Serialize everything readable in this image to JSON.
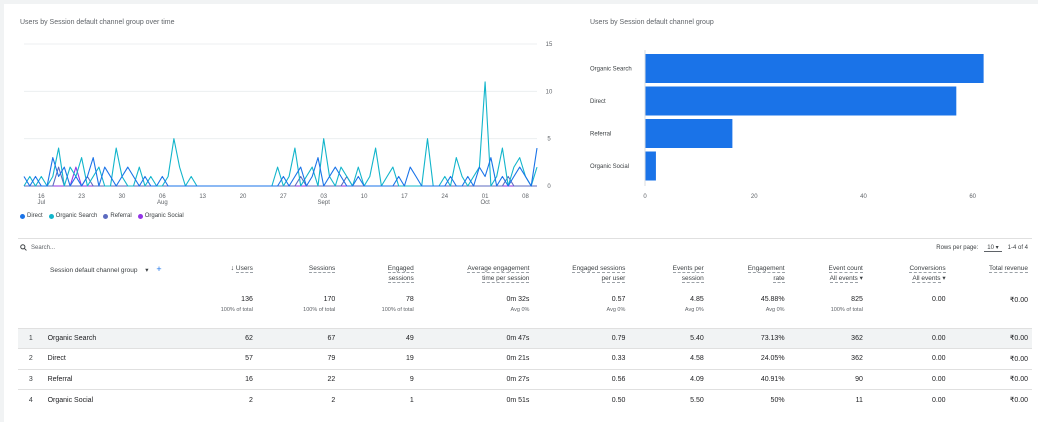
{
  "line_chart": {
    "title": "Users by Session default channel group over time",
    "y_ticks": [
      "15",
      "10",
      "5",
      "0"
    ],
    "x_ticks": [
      {
        "day": "16",
        "month": "Jul"
      },
      {
        "day": "23",
        "month": ""
      },
      {
        "day": "30",
        "month": ""
      },
      {
        "day": "06",
        "month": "Aug"
      },
      {
        "day": "13",
        "month": ""
      },
      {
        "day": "20",
        "month": ""
      },
      {
        "day": "27",
        "month": ""
      },
      {
        "day": "03",
        "month": "Sept"
      },
      {
        "day": "10",
        "month": ""
      },
      {
        "day": "17",
        "month": ""
      },
      {
        "day": "24",
        "month": ""
      },
      {
        "day": "01",
        "month": "Oct"
      },
      {
        "day": "08",
        "month": ""
      }
    ],
    "legend": [
      {
        "name": "Direct",
        "color": "#1a73e8"
      },
      {
        "name": "Organic Search",
        "color": "#12b5cb"
      },
      {
        "name": "Referral",
        "color": "#5c6bc0"
      },
      {
        "name": "Organic Social",
        "color": "#9334e6"
      }
    ]
  },
  "chart_data": [
    {
      "type": "line",
      "title": "Users by Session default channel group over time",
      "ylim": [
        0,
        15
      ],
      "x_start": "Jul 13",
      "series": [
        {
          "name": "Direct",
          "color": "#1a73e8",
          "values": [
            1,
            0,
            1,
            0,
            0,
            3,
            1,
            2,
            0,
            1,
            0,
            1,
            3,
            0,
            2,
            1,
            0,
            1,
            2,
            1,
            0,
            1,
            0,
            0,
            1,
            0,
            0,
            0,
            0,
            0,
            0,
            0,
            0,
            0,
            0,
            0,
            0,
            0,
            0,
            0,
            0,
            0,
            0,
            0,
            0,
            1,
            0,
            1,
            2,
            0,
            1,
            3,
            0,
            1,
            2,
            1,
            0,
            0,
            1,
            0,
            0,
            0,
            0,
            0,
            0,
            1,
            0,
            2,
            1,
            0,
            0,
            0,
            0,
            0,
            1,
            0,
            0,
            1,
            0,
            2,
            1,
            3,
            0,
            1,
            0,
            1,
            2,
            1,
            0,
            4
          ]
        },
        {
          "name": "Organic Search",
          "color": "#12b5cb",
          "values": [
            0,
            1,
            0,
            1,
            0,
            1,
            4,
            0,
            2,
            1,
            3,
            0,
            1,
            2,
            0,
            0,
            4,
            1,
            0,
            0,
            2,
            0,
            1,
            0,
            0,
            1,
            5,
            2,
            0,
            1,
            0,
            0,
            0,
            0,
            0,
            0,
            0,
            0,
            0,
            0,
            0,
            0,
            0,
            0,
            2,
            0,
            1,
            4,
            0,
            1,
            2,
            0,
            5,
            1,
            0,
            2,
            1,
            0,
            2,
            0,
            1,
            4,
            0,
            1,
            2,
            0,
            0,
            0,
            0,
            0,
            5,
            0,
            0,
            1,
            0,
            3,
            1,
            0,
            1,
            2,
            11,
            0,
            1,
            4,
            0,
            2,
            3,
            1,
            0,
            2
          ]
        },
        {
          "name": "Referral",
          "color": "#5c6bc0",
          "values": [
            0,
            0,
            0,
            0,
            0,
            0,
            2,
            0,
            0,
            0,
            0,
            1,
            0,
            0,
            0,
            0,
            0,
            0,
            0,
            0,
            0,
            0,
            0,
            0,
            0,
            0,
            0,
            0,
            0,
            0,
            0,
            0,
            0,
            0,
            0,
            0,
            0,
            0,
            0,
            0,
            0,
            0,
            0,
            0,
            0,
            0,
            0,
            0,
            1,
            0,
            0,
            0,
            0,
            0,
            0,
            0,
            1,
            0,
            0,
            0,
            0,
            0,
            0,
            0,
            0,
            0,
            0,
            0,
            0,
            0,
            0,
            0,
            0,
            0,
            0,
            0,
            0,
            0,
            0,
            0,
            0,
            0,
            0,
            0,
            1,
            0,
            0,
            0,
            0,
            0
          ]
        },
        {
          "name": "Organic Social",
          "color": "#9334e6",
          "values": [
            0,
            0,
            0,
            0,
            0,
            0,
            0,
            0,
            0,
            2,
            0,
            0,
            0,
            0,
            0,
            0,
            0,
            0,
            0,
            0,
            0,
            0,
            0,
            0,
            0,
            0,
            0,
            0,
            0,
            0,
            0,
            0,
            0,
            0,
            0,
            0,
            0,
            0,
            0,
            0,
            0,
            0,
            0,
            0,
            0,
            0,
            0,
            0,
            0,
            0,
            0,
            0,
            0,
            0,
            0,
            0,
            0,
            0,
            0,
            0,
            0,
            0,
            0,
            0,
            0,
            0,
            0,
            0,
            0,
            0,
            0,
            0,
            0,
            0,
            0,
            0,
            0,
            0,
            0,
            0,
            0,
            0,
            0,
            0,
            0,
            0,
            0,
            0,
            0,
            0
          ]
        }
      ]
    },
    {
      "type": "bar",
      "title": "Users by Session default channel group",
      "categories": [
        "Organic Search",
        "Direct",
        "Referral",
        "Organic Social"
      ],
      "values": [
        62,
        57,
        16,
        2
      ],
      "xlim": [
        0,
        65
      ],
      "x_ticks": [
        "0",
        "20",
        "40",
        "60"
      ],
      "color": "#1a73e8"
    }
  ],
  "bar_chart": {
    "title": "Users by Session default channel group"
  },
  "toolbar": {
    "search_placeholder": "Search...",
    "rows_per_page_label": "Rows per page:",
    "rows_per_page_value": "10",
    "page_range": "1-4 of 4"
  },
  "table": {
    "dimension_header": "Session default channel group",
    "columns": [
      {
        "line1": "Users",
        "line2": "",
        "sorted": true
      },
      {
        "line1": "Sessions",
        "line2": ""
      },
      {
        "line1": "Engaged",
        "line2": "sessions"
      },
      {
        "line1": "Average engagement",
        "line2": "time per session"
      },
      {
        "line1": "Engaged sessions",
        "line2": "per user"
      },
      {
        "line1": "Events per",
        "line2": "session"
      },
      {
        "line1": "Engagement",
        "line2": "rate"
      },
      {
        "line1": "Event count",
        "line2": "All events"
      },
      {
        "line1": "Conversions",
        "line2": "All events"
      },
      {
        "line1": "Total revenue",
        "line2": ""
      }
    ],
    "totals": [
      {
        "value": "136",
        "sub": "100% of total"
      },
      {
        "value": "170",
        "sub": "100% of total"
      },
      {
        "value": "78",
        "sub": "100% of total"
      },
      {
        "value": "0m 32s",
        "sub": "Avg 0%"
      },
      {
        "value": "0.57",
        "sub": "Avg 0%"
      },
      {
        "value": "4.85",
        "sub": "Avg 0%"
      },
      {
        "value": "45.88%",
        "sub": "Avg 0%"
      },
      {
        "value": "825",
        "sub": "100% of total"
      },
      {
        "value": "0.00",
        "sub": ""
      },
      {
        "value": "₹0.00",
        "sub": ""
      }
    ],
    "rows": [
      {
        "idx": "1",
        "name": "Organic Search",
        "cells": [
          "62",
          "67",
          "49",
          "0m 47s",
          "0.79",
          "5.40",
          "73.13%",
          "362",
          "0.00",
          "₹0.00"
        ]
      },
      {
        "idx": "2",
        "name": "Direct",
        "cells": [
          "57",
          "79",
          "19",
          "0m 21s",
          "0.33",
          "4.58",
          "24.05%",
          "362",
          "0.00",
          "₹0.00"
        ]
      },
      {
        "idx": "3",
        "name": "Referral",
        "cells": [
          "16",
          "22",
          "9",
          "0m 27s",
          "0.56",
          "4.09",
          "40.91%",
          "90",
          "0.00",
          "₹0.00"
        ]
      },
      {
        "idx": "4",
        "name": "Organic Social",
        "cells": [
          "2",
          "2",
          "1",
          "0m 51s",
          "0.50",
          "5.50",
          "50%",
          "11",
          "0.00",
          "₹0.00"
        ]
      }
    ]
  }
}
